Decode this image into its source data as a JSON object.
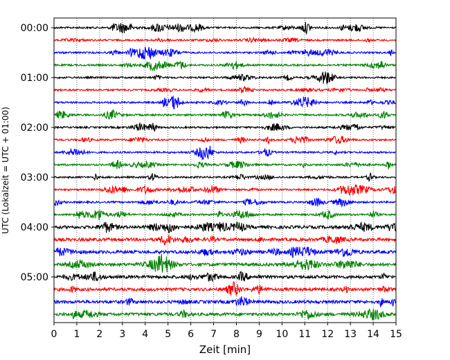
{
  "chart_data": {
    "type": "line",
    "title": "",
    "xlabel": "Zeit  [min]",
    "ylabel": "UTC (Lokalzeit = UTC + 01:00)",
    "xlim": [
      0,
      15
    ],
    "x_ticks": [
      "0",
      "1",
      "2",
      "3",
      "4",
      "5",
      "6",
      "7",
      "8",
      "9",
      "10",
      "11",
      "12",
      "13",
      "14",
      "15"
    ],
    "y_ticks": [
      "00:00",
      "01:00",
      "02:00",
      "03:00",
      "04:00",
      "05:00"
    ],
    "trace_interval_min": 15,
    "trace_count": 24,
    "grid": "vertical dotted at each minute",
    "trace_colors": [
      "#000000",
      "#ff0000",
      "#0000ff",
      "#008000"
    ],
    "traces": [
      {
        "start": "00:00",
        "color": "#000000"
      },
      {
        "start": "00:15",
        "color": "#ff0000"
      },
      {
        "start": "00:30",
        "color": "#0000ff"
      },
      {
        "start": "00:45",
        "color": "#008000"
      },
      {
        "start": "01:00",
        "color": "#000000"
      },
      {
        "start": "01:15",
        "color": "#ff0000"
      },
      {
        "start": "01:30",
        "color": "#0000ff"
      },
      {
        "start": "01:45",
        "color": "#008000"
      },
      {
        "start": "02:00",
        "color": "#000000"
      },
      {
        "start": "02:15",
        "color": "#ff0000"
      },
      {
        "start": "02:30",
        "color": "#0000ff"
      },
      {
        "start": "02:45",
        "color": "#008000"
      },
      {
        "start": "03:00",
        "color": "#000000"
      },
      {
        "start": "03:15",
        "color": "#ff0000"
      },
      {
        "start": "03:30",
        "color": "#0000ff"
      },
      {
        "start": "03:45",
        "color": "#008000"
      },
      {
        "start": "04:00",
        "color": "#000000"
      },
      {
        "start": "04:15",
        "color": "#ff0000"
      },
      {
        "start": "04:30",
        "color": "#0000ff"
      },
      {
        "start": "04:45",
        "color": "#008000"
      },
      {
        "start": "05:00",
        "color": "#000000"
      },
      {
        "start": "05:15",
        "color": "#ff0000"
      },
      {
        "start": "05:30",
        "color": "#0000ff"
      },
      {
        "start": "05:45",
        "color": "#008000"
      }
    ]
  }
}
